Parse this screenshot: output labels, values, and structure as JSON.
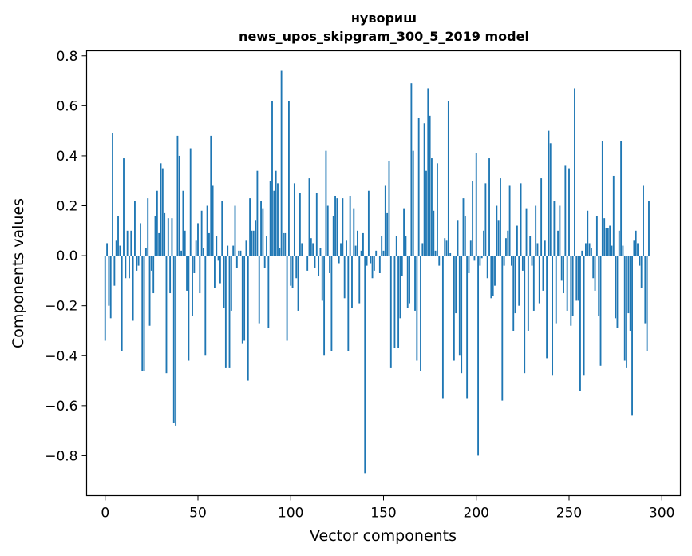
{
  "chart_data": {
    "type": "bar",
    "title_line1": "нувориш",
    "title_line2": "news_upos_skipgram_300_5_2019 model",
    "xlabel": "Vector components",
    "ylabel": "Components values",
    "xlim": [
      -10,
      310
    ],
    "ylim": [
      -0.96,
      0.82
    ],
    "xticks": [
      0,
      50,
      100,
      150,
      200,
      250,
      300
    ],
    "xtick_labels": [
      "0",
      "50",
      "100",
      "150",
      "200",
      "250",
      "300"
    ],
    "yticks": [
      -0.8,
      -0.6,
      -0.4,
      -0.2,
      0.0,
      0.2,
      0.4,
      0.6,
      0.8
    ],
    "ytick_labels": [
      "−0.8",
      "−0.6",
      "−0.4",
      "−0.2",
      "0.0",
      "0.2",
      "0.4",
      "0.6",
      "0.8"
    ],
    "bar_color": "#1f77b4",
    "values": [
      -0.34,
      0.05,
      -0.2,
      -0.25,
      0.49,
      -0.12,
      0.06,
      0.16,
      0.04,
      -0.38,
      0.39,
      -0.09,
      0.1,
      -0.09,
      0.1,
      -0.26,
      0.22,
      -0.06,
      -0.04,
      0.13,
      -0.46,
      -0.46,
      0.03,
      0.23,
      -0.28,
      -0.06,
      -0.15,
      0.16,
      0.26,
      0.09,
      0.37,
      0.35,
      0.17,
      -0.47,
      0.15,
      -0.15,
      0.15,
      -0.67,
      -0.68,
      0.48,
      0.4,
      0.02,
      0.26,
      0.1,
      -0.14,
      -0.42,
      0.43,
      -0.24,
      -0.07,
      0.06,
      0.13,
      -0.15,
      0.18,
      0.03,
      -0.4,
      0.2,
      0.09,
      0.48,
      0.28,
      -0.13,
      0.08,
      -0.02,
      -0.11,
      0.22,
      -0.21,
      -0.45,
      0.04,
      -0.45,
      -0.22,
      0.04,
      0.2,
      -0.05,
      0.02,
      0.02,
      -0.35,
      -0.34,
      0.06,
      -0.5,
      0.23,
      0.1,
      0.1,
      0.14,
      0.34,
      -0.27,
      0.22,
      0.19,
      -0.05,
      0.08,
      -0.29,
      0.3,
      0.62,
      0.26,
      0.34,
      0.29,
      0.03,
      0.74,
      0.09,
      0.09,
      -0.34,
      0.62,
      -0.12,
      -0.13,
      0.29,
      -0.09,
      -0.22,
      0.25,
      0.05,
      0.0,
      0.0,
      -0.06,
      0.31,
      0.07,
      0.05,
      -0.05,
      0.25,
      -0.08,
      0.03,
      -0.18,
      -0.4,
      0.42,
      0.2,
      -0.07,
      -0.38,
      0.16,
      0.24,
      0.23,
      -0.03,
      0.05,
      0.23,
      -0.17,
      0.06,
      -0.38,
      0.24,
      -0.21,
      0.19,
      0.04,
      0.1,
      -0.19,
      0.02,
      0.09,
      -0.87,
      -0.04,
      0.26,
      -0.03,
      -0.09,
      -0.06,
      0.02,
      0.0,
      -0.07,
      0.08,
      0.02,
      0.28,
      0.17,
      0.38,
      -0.45,
      0.0,
      -0.37,
      0.08,
      -0.37,
      -0.25,
      -0.08,
      0.19,
      0.08,
      -0.21,
      -0.19,
      0.69,
      0.42,
      -0.22,
      -0.42,
      0.55,
      -0.46,
      0.05,
      0.53,
      0.34,
      0.67,
      0.56,
      0.39,
      0.18,
      0.02,
      0.37,
      -0.04,
      0.0,
      -0.57,
      0.07,
      0.06,
      0.62,
      0.01,
      0.0,
      -0.42,
      -0.23,
      0.14,
      -0.4,
      -0.47,
      0.23,
      0.16,
      -0.57,
      -0.07,
      0.06,
      0.3,
      -0.02,
      0.41,
      -0.8,
      -0.04,
      -0.01,
      0.1,
      0.29,
      -0.09,
      0.39,
      -0.17,
      -0.16,
      -0.12,
      0.2,
      0.14,
      0.31,
      -0.58,
      -0.04,
      0.07,
      0.1,
      0.28,
      -0.04,
      -0.3,
      -0.23,
      0.12,
      -0.2,
      0.29,
      -0.06,
      -0.47,
      0.19,
      -0.3,
      0.08,
      -0.04,
      -0.22,
      0.2,
      0.05,
      -0.19,
      0.31,
      -0.14,
      0.06,
      -0.41,
      0.5,
      0.45,
      -0.48,
      0.22,
      -0.27,
      0.1,
      0.2,
      -0.1,
      -0.15,
      0.36,
      -0.22,
      0.35,
      -0.28,
      -0.24,
      0.67,
      -0.18,
      -0.18,
      -0.54,
      0.02,
      -0.48,
      0.05,
      0.18,
      0.05,
      0.03,
      -0.09,
      -0.14,
      0.16,
      -0.24,
      -0.44,
      0.46,
      0.15,
      0.11,
      0.11,
      0.12,
      0.04,
      0.32,
      -0.25,
      -0.29,
      0.1,
      0.46,
      0.04,
      -0.42,
      -0.45,
      -0.23,
      -0.3,
      -0.64,
      0.06,
      0.1,
      0.05,
      -0.04,
      -0.13,
      0.28,
      -0.27,
      -0.38,
      0.22
    ]
  }
}
